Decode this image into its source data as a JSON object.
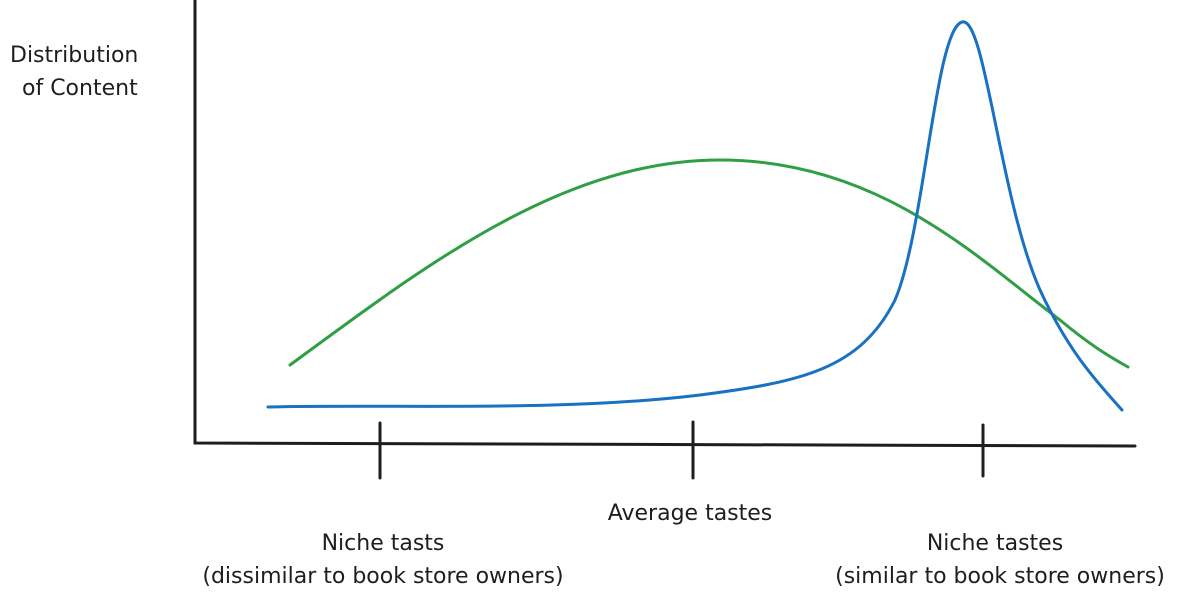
{
  "y_axis_label": {
    "line1": "Distribution",
    "line2": "of Content"
  },
  "x_labels": {
    "center": "Average tastes",
    "left": {
      "title": "Niche tasts",
      "subtitle": "(dissimilar to book store owners)"
    },
    "right": {
      "title": "Niche tastes",
      "subtitle": "(similar to book store owners)"
    }
  }
}
